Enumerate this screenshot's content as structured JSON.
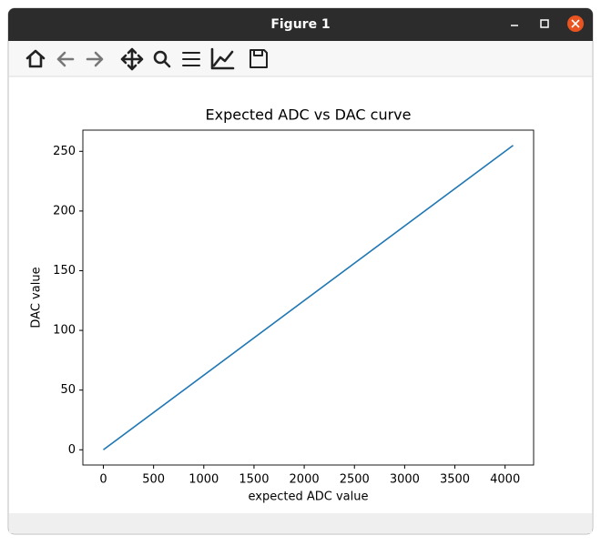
{
  "window": {
    "title": "Figure 1"
  },
  "chart_data": {
    "type": "line",
    "title": "Expected ADC vs DAC curve",
    "x_label": "expected ADC value",
    "y_label": "DAC value",
    "x": [
      0,
      4080
    ],
    "series": [
      {
        "name": "DAC",
        "color": "#1f77b4",
        "values": [
          0,
          255
        ]
      }
    ],
    "xlim": [
      -204,
      4284
    ],
    "ylim": [
      -12.75,
      267.75
    ],
    "xticks": [
      0,
      500,
      1000,
      1500,
      2000,
      2500,
      3000,
      3500,
      4000
    ],
    "yticks": [
      0,
      50,
      100,
      150,
      200,
      250
    ]
  }
}
